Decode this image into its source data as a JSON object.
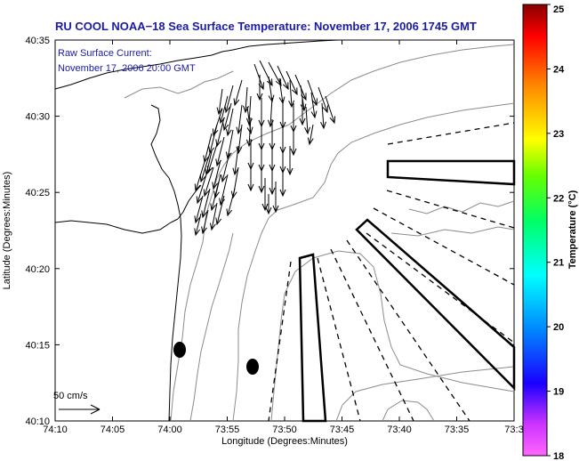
{
  "title": "RU COOL  NOAA−18  Sea Surface Temperature:  November 17, 2006 1745 GMT",
  "current_label_line1": "Raw Surface Current:",
  "current_label_line2": "November 17, 2006 20:00 GMT",
  "scale_label": "50 cm/s",
  "x_axis_label": "Longitude (Degrees:Minutes)",
  "y_axis_label": "Latitude (Degrees:Minutes)",
  "colorbar_label": "Temperature (°C)",
  "x_ticks": [
    "74:10",
    "74:05",
    "74:00",
    "73:55",
    "73:50",
    "73:45",
    "73:40",
    "73:35",
    "73:3"
  ],
  "y_ticks": [
    "40:35",
    "40:30",
    "40:25",
    "40:20",
    "40:15",
    "40:10"
  ],
  "colorbar_ticks": [
    "25",
    "24",
    "23",
    "22",
    "21",
    "20",
    "19",
    "18"
  ],
  "colors": {
    "title": "#1a1aa6",
    "coast": "#000000",
    "isobath": "#8c8c8c",
    "colormap": [
      "#ff66ff",
      "#cc33ff",
      "#1a00ff",
      "#0088ff",
      "#00ffff",
      "#00ff66",
      "#66ff00",
      "#ffff00",
      "#ff8800",
      "#ff0000",
      "#880000"
    ]
  },
  "chart_data": {
    "type": "map",
    "xlim": [
      "74:10",
      "73:30"
    ],
    "ylim": [
      "40:10",
      "40:35"
    ],
    "colorbar_range": [
      18,
      25
    ],
    "vector_scale": "50 cm/s"
  }
}
